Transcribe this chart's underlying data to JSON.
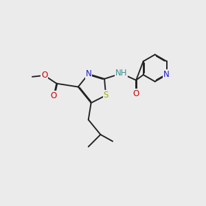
{
  "bg_color": "#ebebeb",
  "bond_color": "#222222",
  "bond_width": 1.4,
  "dbo": 0.012,
  "atom_colors": {
    "N_thiazole": "#1a1acc",
    "N_pyridine": "#1a1acc",
    "S": "#aaaa00",
    "O": "#cc0000",
    "NH": "#3a9090",
    "C": "#222222"
  },
  "font_size": 8.5,
  "fig_size": [
    3.0,
    3.0
  ],
  "dpi": 100
}
